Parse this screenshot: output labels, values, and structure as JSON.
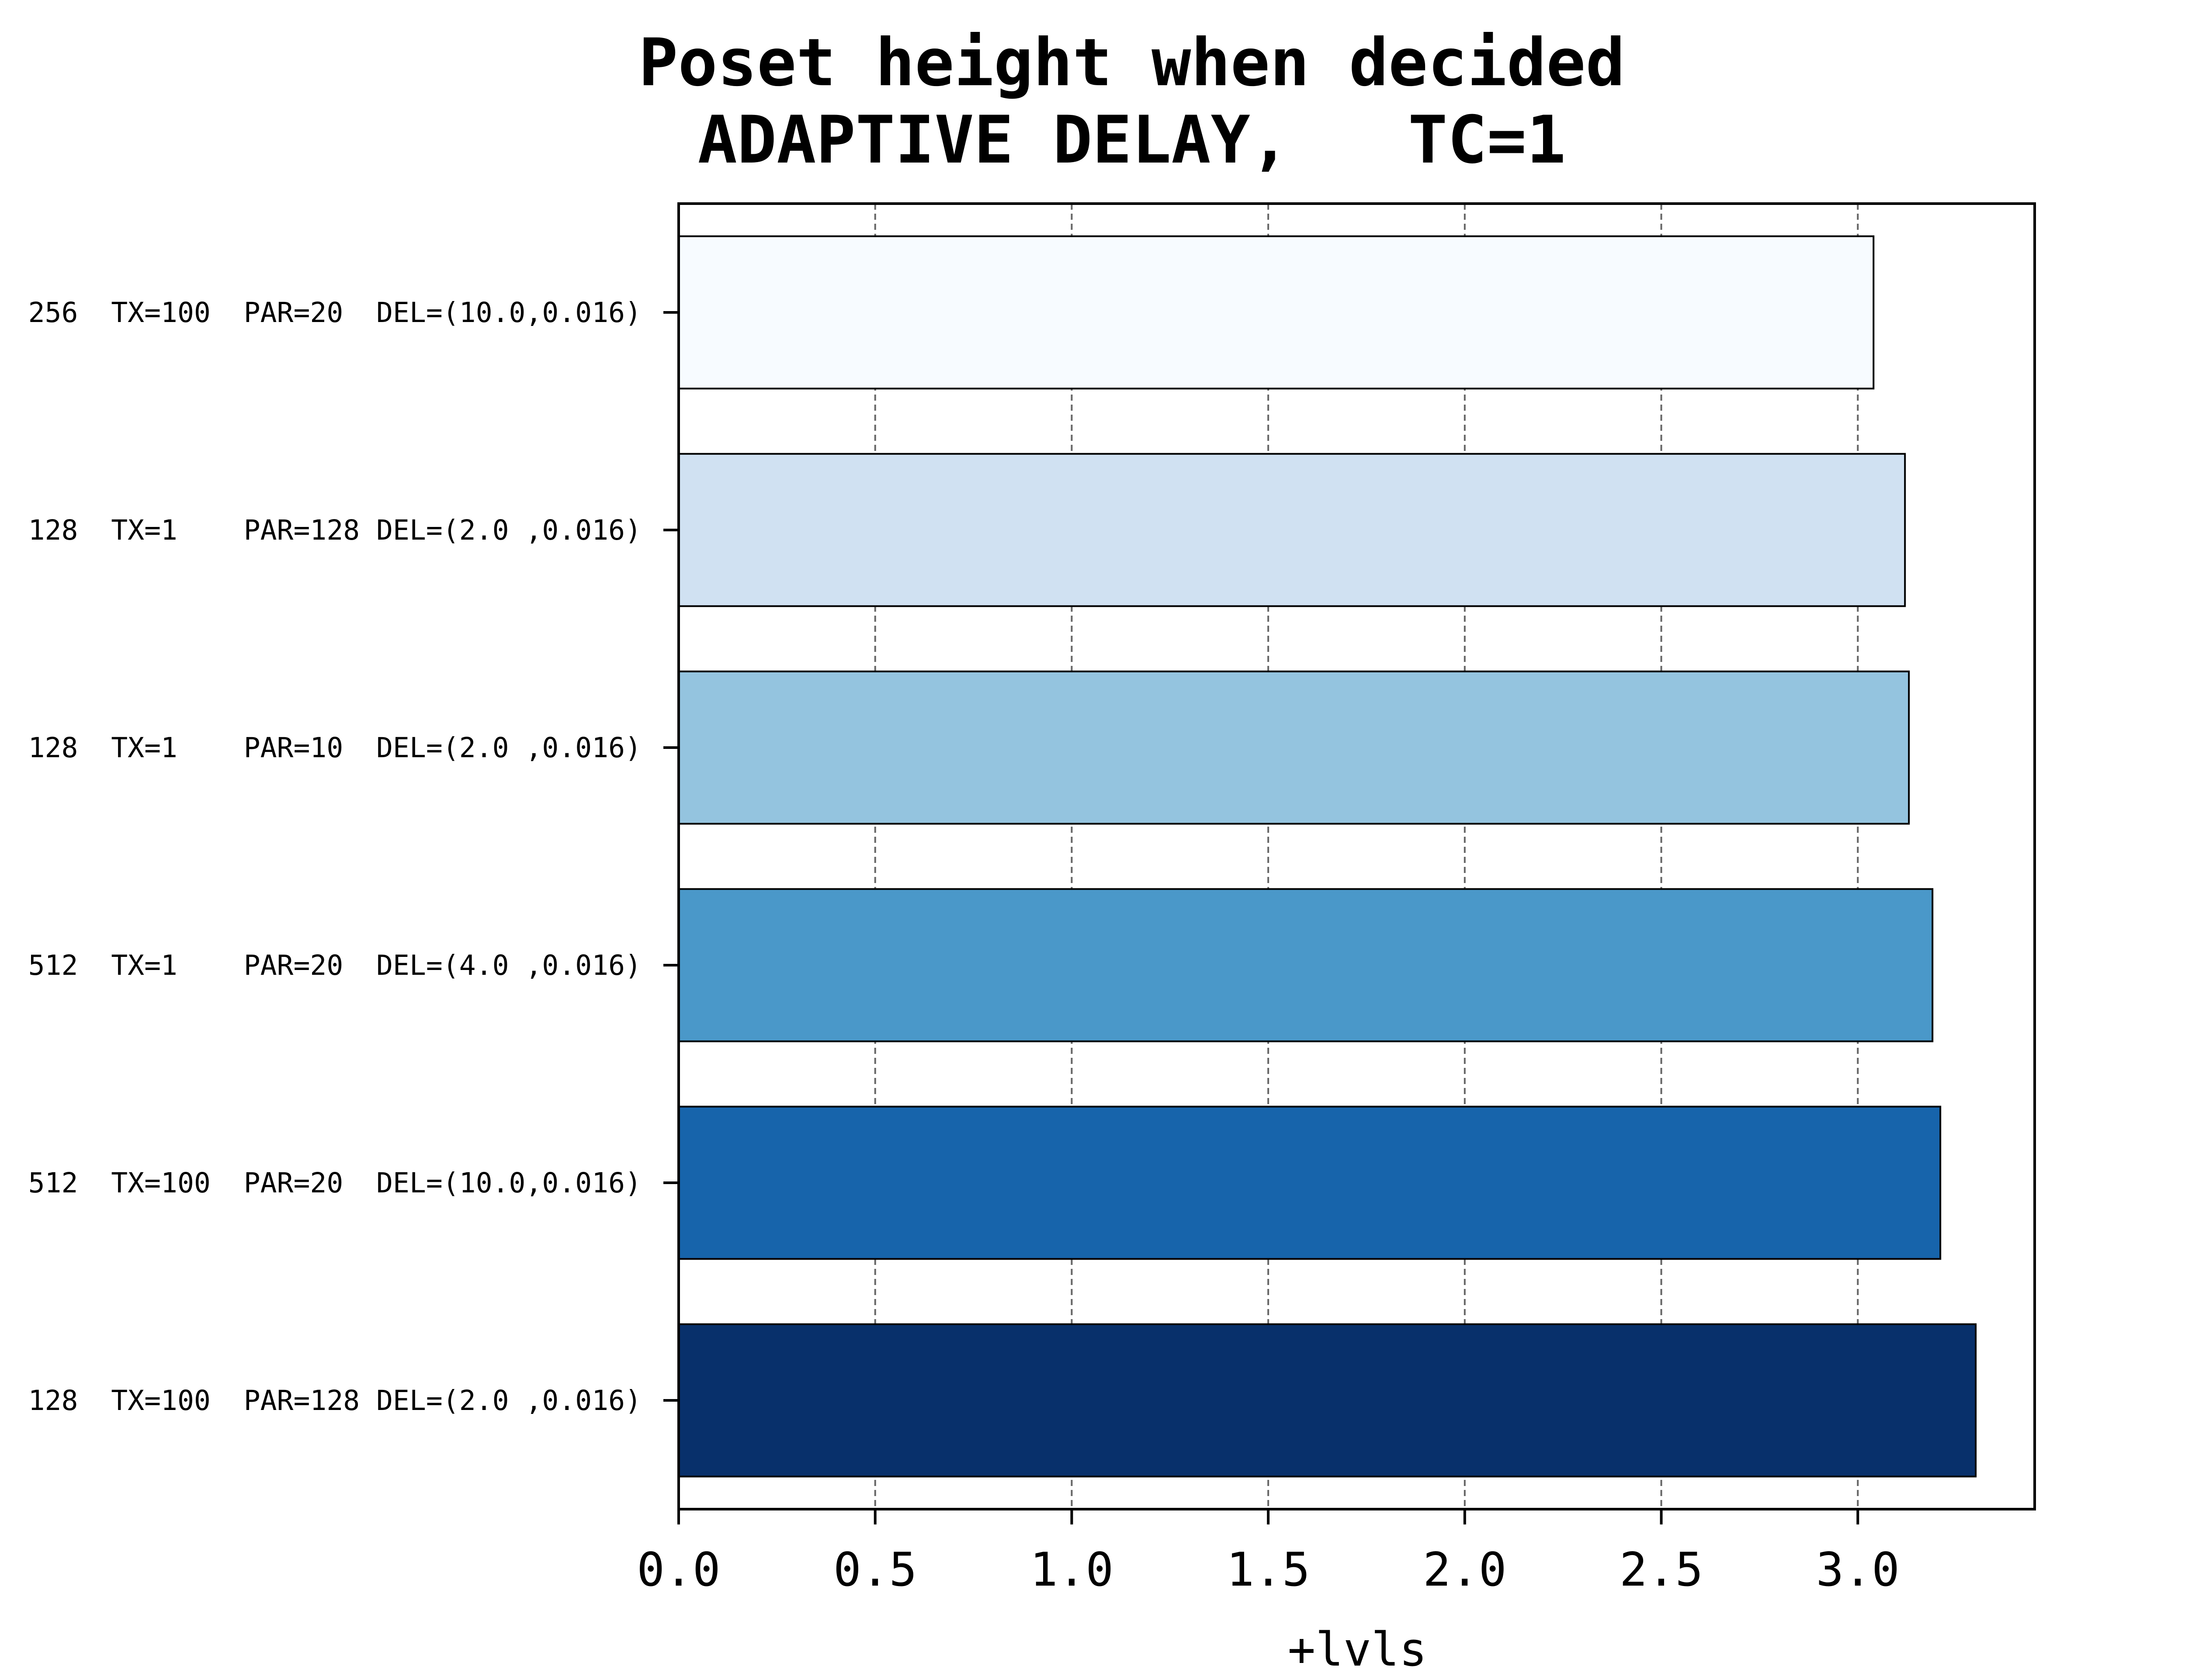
{
  "chart_data": {
    "type": "bar",
    "orientation": "horizontal",
    "title": [
      "Poset height when decided",
      "ADAPTIVE DELAY,   TC=1"
    ],
    "xlabel": "+lvls",
    "ylabel": "",
    "xlim": [
      0,
      3.45
    ],
    "xticks": [
      "0.0",
      "0.5",
      "1.0",
      "1.5",
      "2.0",
      "2.5",
      "3.0"
    ],
    "xtick_values": [
      0,
      0.5,
      1.0,
      1.5,
      2.0,
      2.5,
      3.0
    ],
    "grid": "x, dashed",
    "categories": [
      "256  TX=100  PAR=20  DEL=(10.0,0.016)",
      "128  TX=1    PAR=128 DEL=(2.0 ,0.016)",
      "128  TX=1    PAR=10  DEL=(2.0 ,0.016)",
      "512  TX=1    PAR=20  DEL=(4.0 ,0.016)",
      "512  TX=100  PAR=20  DEL=(10.0,0.016)",
      "128  TX=100  PAR=128 DEL=(2.0 ,0.016)"
    ],
    "values": [
      3.04,
      3.12,
      3.13,
      3.19,
      3.21,
      3.3
    ],
    "bar_colors": [
      "#f7fbff",
      "#d0e1f2",
      "#94c4df",
      "#4a98c9",
      "#1764ab",
      "#08306b"
    ],
    "bar_edge_color": "#000000",
    "grid_color": "#666666"
  }
}
